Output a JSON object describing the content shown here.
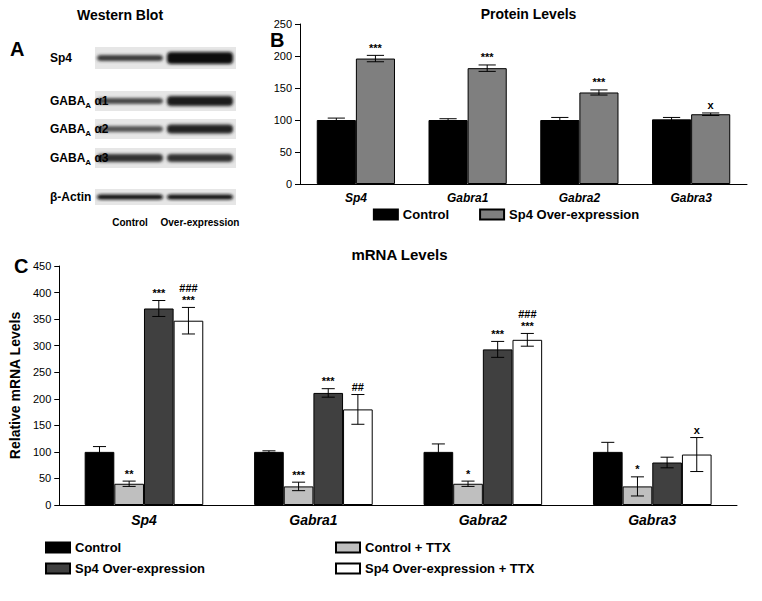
{
  "western_blot": {
    "panel_label": "A",
    "title": "Western Blot",
    "rows": [
      {
        "text": "Sp4"
      },
      {
        "text": "GABA",
        "subscript": "A",
        "after": " α1"
      },
      {
        "text": "GABA",
        "subscript": "A",
        "after": " α2"
      },
      {
        "text": "GABA",
        "subscript": "A",
        "after": " α3"
      },
      {
        "text": "β-Actin"
      }
    ],
    "lanes": [
      "Control",
      "Over-expression"
    ]
  },
  "chart_data": [
    {
      "type": "bar",
      "panel_label": "B",
      "title": "Protein Levels",
      "categories": [
        "Sp4",
        "Gabra1",
        "Gabra2",
        "Gabra3"
      ],
      "series": [
        {
          "name": "Control",
          "color": "#000000",
          "values": [
            100,
            100,
            100,
            101
          ],
          "errors": [
            3,
            2,
            4,
            3
          ],
          "annotations": [
            [],
            [],
            [],
            []
          ]
        },
        {
          "name": "Sp4 Over-expression",
          "color": "#7f7f7f",
          "values": [
            196,
            181,
            143,
            109
          ],
          "errors": [
            5,
            5,
            4,
            2
          ],
          "annotations": [
            [
              "***"
            ],
            [
              "***"
            ],
            [
              "***"
            ],
            [
              "x"
            ]
          ]
        }
      ],
      "ylim": [
        0,
        250
      ],
      "yticks": [
        0,
        50,
        100,
        150,
        200,
        250
      ],
      "grid": false,
      "legend": "bottom"
    },
    {
      "type": "bar",
      "panel_label": "C",
      "title": "mRNA Levels",
      "y_label": "Relative mRNA Levels",
      "categories": [
        "Sp4",
        "Gabra1",
        "Gabra2",
        "Gabra3"
      ],
      "series": [
        {
          "name": "Control",
          "color": "#000000",
          "values": [
            100,
            100,
            100,
            100
          ],
          "errors": [
            10,
            2,
            15,
            18
          ],
          "annotations": [
            [],
            [],
            [],
            []
          ]
        },
        {
          "name": "Control + TTX",
          "color": "#bfbfbf",
          "values": [
            40,
            35,
            40,
            35
          ],
          "errors": [
            5,
            8,
            5,
            18
          ],
          "annotations": [
            [
              "**"
            ],
            [
              "***"
            ],
            [
              "*"
            ],
            [
              "*"
            ]
          ]
        },
        {
          "name": "Sp4 Over-expression",
          "color": "#404040",
          "values": [
            370,
            211,
            293,
            80
          ],
          "errors": [
            15,
            8,
            15,
            10
          ],
          "annotations": [
            [
              "***"
            ],
            [
              "***"
            ],
            [
              "***"
            ],
            []
          ]
        },
        {
          "name": "Sp4 Over-expression + TTX",
          "color": "#ffffff",
          "values": [
            347,
            180,
            311,
            95
          ],
          "errors": [
            25,
            28,
            12,
            32
          ],
          "annotations": [
            [
              "###",
              "***"
            ],
            [
              "##"
            ],
            [
              "###",
              "***"
            ],
            [
              "x"
            ]
          ]
        }
      ],
      "ylim": [
        0,
        450
      ],
      "yticks": [
        0,
        50,
        100,
        150,
        200,
        250,
        300,
        350,
        400,
        450
      ],
      "grid": false,
      "legend": "bottom"
    }
  ]
}
